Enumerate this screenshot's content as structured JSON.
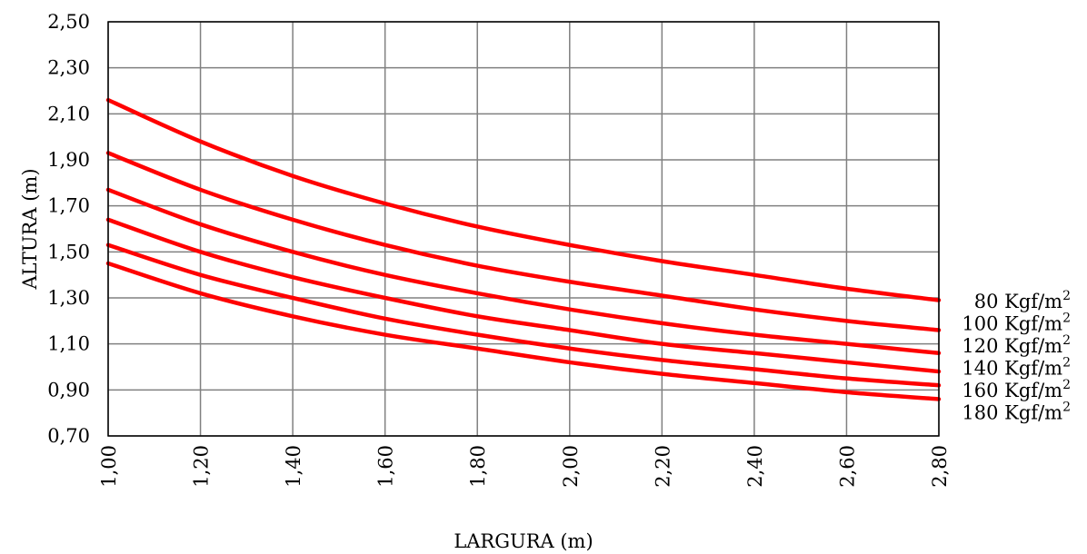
{
  "chart_data": {
    "type": "line",
    "title": "",
    "xlabel": "LARGURA (m)",
    "ylabel": "ALTURA (m)",
    "xlim": [
      1.0,
      2.8
    ],
    "ylim": [
      0.7,
      2.5
    ],
    "x_ticks": [
      "1,00",
      "1,20",
      "1,40",
      "1,60",
      "1,80",
      "2,00",
      "2,20",
      "2,40",
      "2,60",
      "2,80"
    ],
    "y_ticks": [
      "0,70",
      "0,90",
      "1,10",
      "1,30",
      "1,50",
      "1,70",
      "1,90",
      "2,10",
      "2,30",
      "2,50"
    ],
    "grid": true,
    "legend_position": "right",
    "line_color": "#ff0000",
    "grid_color": "#808080",
    "x": [
      1.0,
      1.2,
      1.4,
      1.6,
      1.8,
      2.0,
      2.2,
      2.4,
      2.6,
      2.8
    ],
    "series": [
      {
        "name": "80 Kgf/m",
        "unit_power": "2",
        "values": [
          2.16,
          1.98,
          1.83,
          1.71,
          1.61,
          1.53,
          1.46,
          1.4,
          1.34,
          1.29
        ]
      },
      {
        "name": "100 Kgf/m",
        "unit_power": "2",
        "values": [
          1.93,
          1.77,
          1.64,
          1.53,
          1.44,
          1.37,
          1.31,
          1.25,
          1.2,
          1.16
        ]
      },
      {
        "name": "120 Kgf/m",
        "unit_power": "2",
        "values": [
          1.77,
          1.62,
          1.5,
          1.4,
          1.32,
          1.25,
          1.19,
          1.14,
          1.1,
          1.06
        ]
      },
      {
        "name": "140 Kgf/m",
        "unit_power": "2",
        "values": [
          1.64,
          1.5,
          1.39,
          1.3,
          1.22,
          1.16,
          1.1,
          1.06,
          1.02,
          0.98
        ]
      },
      {
        "name": "160 Kgf/m",
        "unit_power": "2",
        "values": [
          1.53,
          1.4,
          1.3,
          1.21,
          1.14,
          1.08,
          1.03,
          0.99,
          0.95,
          0.92
        ]
      },
      {
        "name": "180 Kgf/m",
        "unit_power": "2",
        "values": [
          1.45,
          1.32,
          1.22,
          1.14,
          1.08,
          1.02,
          0.97,
          0.93,
          0.89,
          0.86
        ]
      }
    ]
  }
}
